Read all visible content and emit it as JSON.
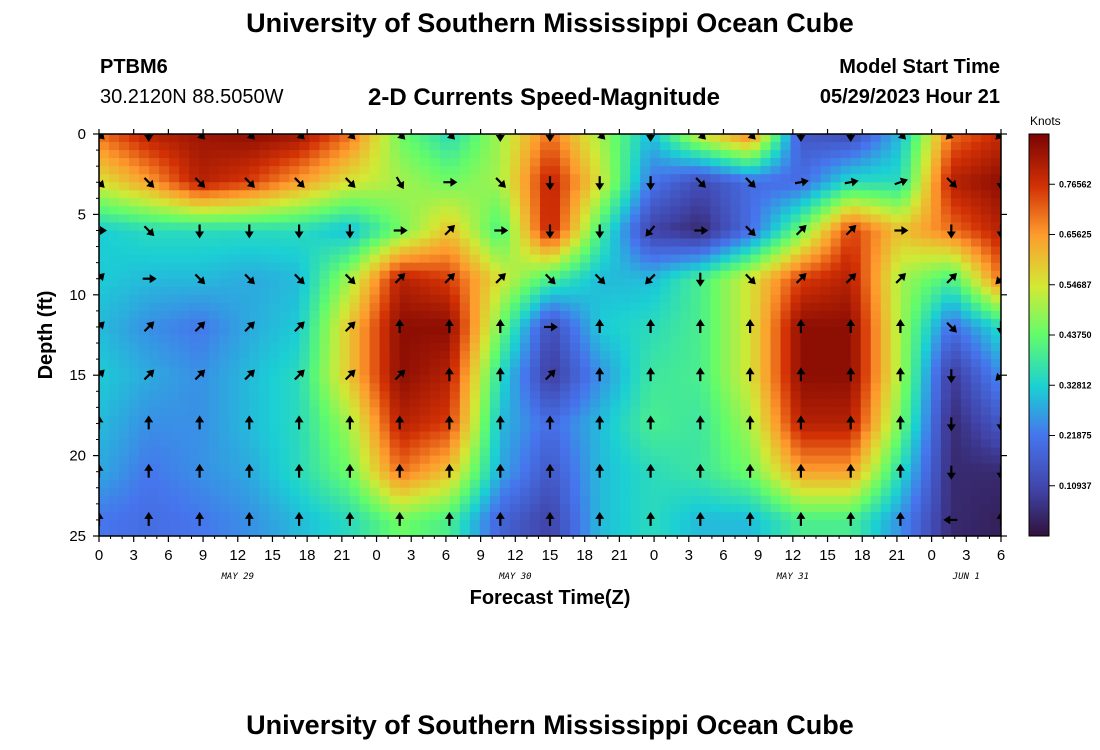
{
  "header": {
    "title": "University of Southern Mississippi Ocean Cube",
    "station": "PTBM6",
    "coords": "30.2120N  88.5050W",
    "plot_title": "2-D Currents Speed-Magnitude",
    "start_label": "Model Start Time",
    "start_value": "05/29/2023 Hour 21"
  },
  "footer": {
    "title": "University of Southern Mississippi Ocean Cube"
  },
  "chart_data": {
    "type": "heatmap",
    "title": "2-D Currents Speed-Magnitude",
    "xlabel": "Forecast Time(Z)",
    "ylabel": "Depth (ft)",
    "x_range_hours": [
      0,
      78
    ],
    "ylim": [
      25,
      0
    ],
    "x_ticks": [
      "0",
      "3",
      "6",
      "9",
      "12",
      "15",
      "18",
      "21",
      "0",
      "3",
      "6",
      "9",
      "12",
      "15",
      "18",
      "21",
      "0",
      "3",
      "6",
      "9",
      "12",
      "15",
      "18",
      "21",
      "0",
      "3",
      "6"
    ],
    "y_ticks": [
      "0",
      "5",
      "10",
      "15",
      "20",
      "25"
    ],
    "day_labels": [
      {
        "text": "MAY 29",
        "hour": 12
      },
      {
        "text": "MAY 30",
        "hour": 36
      },
      {
        "text": "MAY 31",
        "hour": 60
      },
      {
        "text": "JUN 1",
        "hour": 75
      }
    ],
    "colorbar": {
      "unit": "Knots",
      "min": 0,
      "max": 0.875,
      "ticks": [
        "0.76562",
        "0.65625",
        "0.54687",
        "0.43750",
        "0.32812",
        "0.21875",
        "0.10937"
      ],
      "tick_values": [
        0.765625,
        0.65625,
        0.546875,
        0.4375,
        0.328125,
        0.21875,
        0.109375
      ]
    },
    "row_depths": [
      0,
      3,
      6,
      9,
      12,
      15,
      18,
      21,
      24
    ],
    "col_hours": [
      0,
      4.3,
      8.7,
      13,
      17.3,
      21.7,
      26,
      30.3,
      34.7,
      39,
      43.3,
      47.7,
      52,
      56.3,
      60.7,
      65,
      69.3,
      73.7,
      78
    ],
    "speed_grid": [
      [
        0.7,
        0.8,
        0.83,
        0.85,
        0.83,
        0.7,
        0.45,
        0.35,
        0.5,
        0.7,
        0.5,
        0.3,
        0.55,
        0.7,
        0.15,
        0.12,
        0.3,
        0.7,
        0.78
      ],
      [
        0.55,
        0.65,
        0.8,
        0.75,
        0.65,
        0.55,
        0.5,
        0.45,
        0.5,
        0.8,
        0.55,
        0.22,
        0.12,
        0.2,
        0.2,
        0.35,
        0.35,
        0.8,
        0.85
      ],
      [
        0.32,
        0.35,
        0.35,
        0.35,
        0.35,
        0.3,
        0.45,
        0.6,
        0.4,
        0.8,
        0.4,
        0.1,
        0.05,
        0.2,
        0.45,
        0.75,
        0.6,
        0.7,
        0.8
      ],
      [
        0.32,
        0.3,
        0.3,
        0.28,
        0.3,
        0.5,
        0.8,
        0.75,
        0.55,
        0.4,
        0.3,
        0.3,
        0.4,
        0.55,
        0.75,
        0.8,
        0.5,
        0.4,
        0.7
      ],
      [
        0.3,
        0.25,
        0.22,
        0.28,
        0.32,
        0.6,
        0.85,
        0.85,
        0.45,
        0.12,
        0.32,
        0.35,
        0.4,
        0.55,
        0.85,
        0.85,
        0.5,
        0.2,
        0.35
      ],
      [
        0.32,
        0.28,
        0.25,
        0.3,
        0.35,
        0.6,
        0.85,
        0.8,
        0.35,
        0.08,
        0.25,
        0.38,
        0.4,
        0.55,
        0.85,
        0.85,
        0.5,
        0.08,
        0.25
      ],
      [
        0.3,
        0.25,
        0.25,
        0.3,
        0.35,
        0.5,
        0.8,
        0.75,
        0.3,
        0.2,
        0.3,
        0.4,
        0.38,
        0.5,
        0.8,
        0.8,
        0.45,
        0.05,
        0.15
      ],
      [
        0.28,
        0.22,
        0.25,
        0.28,
        0.35,
        0.45,
        0.7,
        0.6,
        0.28,
        0.15,
        0.3,
        0.35,
        0.38,
        0.45,
        0.65,
        0.65,
        0.35,
        0.05,
        0.05
      ],
      [
        0.22,
        0.2,
        0.22,
        0.25,
        0.3,
        0.35,
        0.45,
        0.4,
        0.18,
        0.1,
        0.3,
        0.35,
        0.3,
        0.3,
        0.4,
        0.4,
        0.25,
        0.05,
        0.03
      ]
    ],
    "arrows": {
      "depths": [
        0,
        3,
        6,
        9,
        12,
        15,
        18,
        21,
        24
      ],
      "hours": [
        0,
        4.3,
        8.7,
        13,
        17.3,
        21.7,
        26,
        30.3,
        34.7,
        39,
        43.3,
        47.7,
        52,
        56.3,
        60.7,
        65,
        69.3,
        73.7,
        78
      ],
      "angles_deg": [
        [
          135,
          180,
          135,
          135,
          135,
          135,
          135,
          135,
          180,
          180,
          135,
          180,
          135,
          135,
          180,
          180,
          135,
          225,
          225
        ],
        [
          135,
          135,
          135,
          135,
          135,
          135,
          150,
          90,
          135,
          180,
          180,
          180,
          135,
          135,
          80,
          80,
          70,
          135,
          180
        ],
        [
          90,
          135,
          180,
          180,
          180,
          180,
          90,
          45,
          90,
          180,
          180,
          220,
          90,
          135,
          45,
          45,
          90,
          180,
          180
        ],
        [
          45,
          90,
          135,
          135,
          135,
          135,
          45,
          45,
          45,
          135,
          135,
          225,
          180,
          135,
          45,
          45,
          45,
          45,
          225
        ],
        [
          45,
          45,
          45,
          45,
          45,
          45,
          0,
          0,
          0,
          90,
          0,
          0,
          0,
          0,
          0,
          0,
          0,
          135,
          180
        ],
        [
          45,
          45,
          45,
          45,
          45,
          45,
          45,
          0,
          0,
          45,
          0,
          0,
          0,
          0,
          0,
          0,
          0,
          180,
          225
        ],
        [
          0,
          0,
          0,
          0,
          0,
          0,
          0,
          0,
          0,
          0,
          0,
          0,
          0,
          0,
          0,
          0,
          0,
          180,
          180
        ],
        [
          0,
          0,
          0,
          0,
          0,
          0,
          0,
          0,
          0,
          0,
          0,
          0,
          0,
          0,
          0,
          0,
          0,
          180,
          180
        ],
        [
          0,
          0,
          0,
          0,
          0,
          0,
          0,
          0,
          0,
          0,
          0,
          0,
          0,
          0,
          0,
          0,
          0,
          270,
          0
        ]
      ]
    }
  }
}
